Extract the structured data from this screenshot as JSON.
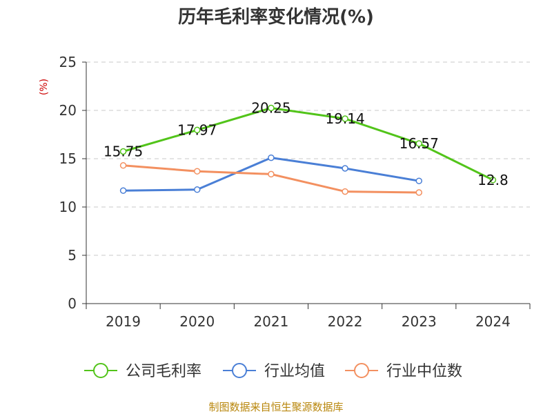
{
  "chart_data": {
    "type": "line",
    "title": "历年毛利率变化情况(%)",
    "ylabel": "(%)",
    "xlabel": "",
    "categories": [
      "2019",
      "2020",
      "2021",
      "2022",
      "2023",
      "2024"
    ],
    "ylim": [
      0,
      25
    ],
    "yticks": [
      0,
      5,
      10,
      15,
      20,
      25
    ],
    "grid": true,
    "legend_position": "bottom",
    "series": [
      {
        "name": "公司毛利率",
        "color": "#52c41a",
        "values": [
          15.75,
          17.97,
          20.25,
          19.14,
          16.57,
          12.8
        ],
        "labels": [
          "15.75",
          "17.97",
          "20.25",
          "19.14",
          "16.57",
          "12.8"
        ],
        "show_labels": true
      },
      {
        "name": "行业均值",
        "color": "#4a7fd6",
        "values": [
          11.7,
          11.8,
          15.1,
          14.0,
          12.7,
          null
        ],
        "show_labels": false
      },
      {
        "name": "行业中位数",
        "color": "#f39060",
        "values": [
          14.3,
          13.7,
          13.4,
          11.6,
          11.5,
          null
        ],
        "show_labels": false
      }
    ]
  },
  "source": "制图数据来自恒生聚源数据库"
}
